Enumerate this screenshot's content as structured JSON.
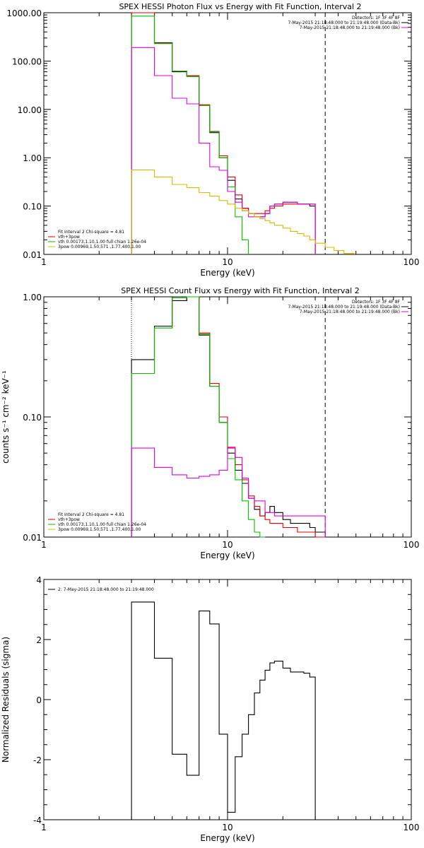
{
  "panels": [
    {
      "id": "photon",
      "title": "SPEX HESSI Photon Flux vs Energy with Fit Function, Interval 2",
      "xlabel": "Energy (keV)",
      "ylabel": "",
      "legend_right": [
        {
          "text": "Detectors: 1F 3F 4F 8F",
          "color": null
        },
        {
          "text": "7-May-2015 21:18:48.000 to 21:19:48.000 (Data-Bk)",
          "color": "#000000"
        },
        {
          "text": "7-May-2015 21:18:48.000 to 21:19:48.000 (Bk)",
          "color": "#e000e0"
        }
      ],
      "legend_left": [
        {
          "text": "Fit Interval  2    Chi-square = 4.81",
          "color": null
        },
        {
          "text": "vth+3pow",
          "color": "#e00000"
        },
        {
          "text": "vth 0.00173,1.10,1.00  full chian 1.26e-04",
          "color": "#00c000"
        },
        {
          "text": "3pow 0.00969,1.50,571 ,1.77,400,1.00",
          "color": "#d8b800"
        }
      ]
    },
    {
      "id": "count",
      "title": "SPEX HESSI Count Flux vs Energy with Fit Function, Interval 2",
      "xlabel": "Energy (keV)",
      "ylabel": "counts s⁻¹ cm⁻² keV⁻¹",
      "legend_right": [
        {
          "text": "Detectors: 1F 3F 4F 8F",
          "color": null
        },
        {
          "text": "7-May-2015 21:18:48.000 to 21:19:48.000 (Data-Bk)",
          "color": "#000000"
        },
        {
          "text": "7-May-2015 21:18:48.000 to 21:19:48.000 (Bk)",
          "color": "#e000e0"
        }
      ],
      "legend_left": [
        {
          "text": "Fit Interval  2    Chi-square = 4.81",
          "color": null
        },
        {
          "text": "vth+3pow",
          "color": "#e00000"
        },
        {
          "text": "vth 0.00173,1.10,1.00  full chian 1.26e-04",
          "color": "#00c000"
        },
        {
          "text": "3pow 0.00969,1.50,571 ,1.77,400,1.00",
          "color": "#d8b800"
        }
      ]
    },
    {
      "id": "resid",
      "title": "",
      "xlabel": "Energy (keV)",
      "ylabel": "Normalized Residuals (sigma)",
      "legend_left": [
        {
          "text": "2: 7-May-2015 21:18:48.000 to 21:19:48.000",
          "color": "#000000"
        }
      ]
    }
  ],
  "chart_data": [
    {
      "type": "line",
      "title": "SPEX HESSI Photon Flux vs Energy with Fit Function, Interval 2",
      "xlabel": "Energy (keV)",
      "xscale": "log",
      "yscale": "log",
      "xlim": [
        1,
        100
      ],
      "ylim": [
        0.01,
        1000
      ],
      "xticks": [
        "1",
        "10",
        "100"
      ],
      "yticks": [
        "0.01",
        "0.10",
        "1.00",
        "10.00",
        "100.00",
        "1000.00"
      ],
      "fit_range_keV": [
        3,
        34
      ],
      "bin_edges": [
        3,
        4,
        5,
        6,
        7,
        8,
        9,
        10,
        11,
        12,
        13,
        14,
        15,
        16,
        17,
        18,
        20,
        22,
        24,
        26,
        28,
        30,
        34,
        38,
        43,
        49
      ],
      "series": [
        {
          "name": "Data-Bk",
          "color": "#000000",
          "values": [
            1000,
            240,
            60,
            48,
            12,
            3.3,
            1.0,
            0.34,
            0.14,
            0.09,
            0.07,
            0.06,
            0.06,
            0.07,
            0.1,
            0.11,
            0.12,
            0.12,
            0.11,
            0.11,
            0.1
          ]
        },
        {
          "name": "vth+3pow",
          "color": "#e00000",
          "values": [
            1000,
            235,
            62,
            50,
            12.5,
            3.5,
            1.1,
            0.4,
            0.17,
            0.09,
            0.07,
            0.07,
            0.07,
            0.08,
            0.09,
            0.1,
            0.11,
            0.11,
            0.11,
            0.11,
            0.11
          ]
        },
        {
          "name": "vth",
          "color": "#00c000",
          "values": [
            850,
            230,
            62,
            48,
            12,
            3.4,
            1.0,
            0.25,
            0.06,
            0.02
          ]
        },
        {
          "name": "Bk",
          "color": "#e000e0",
          "values": [
            190,
            50,
            17,
            13,
            2.0,
            0.65,
            0.55,
            0.2,
            0.12,
            0.08,
            0.06,
            0.06,
            0.06,
            0.07,
            0.1,
            0.11,
            0.12,
            0.12,
            0.11,
            0.11,
            0.11
          ]
        },
        {
          "name": "3pow",
          "color": "#d8b800",
          "values": [
            0.56,
            0.4,
            0.28,
            0.24,
            0.19,
            0.16,
            0.13,
            0.11,
            0.09,
            0.08,
            0.07,
            0.06,
            0.055,
            0.05,
            0.045,
            0.04,
            0.035,
            0.03,
            0.027,
            0.024,
            0.02,
            0.017,
            0.014,
            0.012,
            0.0105
          ]
        }
      ]
    },
    {
      "type": "line",
      "title": "SPEX HESSI Count Flux vs Energy with Fit Function, Interval 2",
      "xlabel": "Energy (keV)",
      "ylabel": "counts s⁻¹ cm⁻² keV⁻¹",
      "xscale": "log",
      "yscale": "log",
      "xlim": [
        1,
        100
      ],
      "ylim": [
        0.01,
        1
      ],
      "xticks": [
        "1",
        "10",
        "100"
      ],
      "yticks": [
        "0.01",
        "0.10",
        "1.00"
      ],
      "fit_range_keV": [
        3,
        34
      ],
      "bin_edges": [
        3,
        4,
        5,
        6,
        7,
        8,
        9,
        10,
        11,
        12,
        13,
        14,
        15,
        16,
        17,
        18,
        20,
        22,
        24,
        26,
        28,
        30,
        34
      ],
      "series": [
        {
          "name": "Data-Bk",
          "color": "#000000",
          "values": [
            0.3,
            0.57,
            0.93,
            1.0,
            0.48,
            0.18,
            0.09,
            0.05,
            0.036,
            0.028,
            0.021,
            0.017,
            0.015,
            0.016,
            0.018,
            0.016,
            0.014,
            0.013,
            0.013,
            0.013,
            0.012,
            0.011
          ]
        },
        {
          "name": "vth+3pow",
          "color": "#e00000",
          "values": [
            0.23,
            0.55,
            0.98,
            1.05,
            0.5,
            0.19,
            0.1,
            0.055,
            0.04,
            0.03,
            0.022,
            0.018,
            0.015,
            0.014,
            0.013,
            0.013,
            0.012,
            0.012,
            0.011,
            0.011,
            0.011,
            0.01
          ]
        },
        {
          "name": "vth",
          "color": "#00c000",
          "values": [
            0.23,
            0.55,
            0.98,
            1.05,
            0.49,
            0.18,
            0.09,
            0.045,
            0.03,
            0.02,
            0.014,
            0.011,
            0.009
          ]
        },
        {
          "name": "Bk",
          "color": "#e000e0",
          "values": [
            0.055,
            0.038,
            0.033,
            0.031,
            0.032,
            0.033,
            0.036,
            0.056,
            0.046,
            0.031,
            0.021,
            0.02,
            0.02,
            0.016,
            0.016,
            0.015,
            0.015,
            0.015,
            0.015,
            0.015,
            0.015,
            0.015
          ]
        }
      ]
    },
    {
      "type": "line",
      "title": "",
      "xlabel": "Energy (keV)",
      "ylabel": "Normalized Residuals (sigma)",
      "xscale": "log",
      "yscale": "linear",
      "xlim": [
        1,
        100
      ],
      "ylim": [
        -4,
        4
      ],
      "xticks": [
        "1",
        "10",
        "100"
      ],
      "yticks": [
        "-4",
        "-2",
        "0",
        "2",
        "4"
      ],
      "bin_edges": [
        3,
        4,
        5,
        6,
        7,
        8,
        9,
        10,
        11,
        12,
        13,
        14,
        15,
        16,
        17,
        18,
        20,
        22,
        24,
        26,
        28,
        30,
        34
      ],
      "series": [
        {
          "name": "2: 7-May-2015 21:18:48.000 to 21:19:48.000",
          "color": "#000000",
          "values": [
            3.25,
            1.38,
            -1.82,
            -2.52,
            2.95,
            2.52,
            -1.15,
            -3.75,
            -1.9,
            -1.15,
            -0.5,
            0.22,
            0.65,
            0.98,
            1.22,
            1.28,
            1.05,
            0.92,
            0.92,
            0.88,
            0.75
          ]
        }
      ]
    }
  ]
}
